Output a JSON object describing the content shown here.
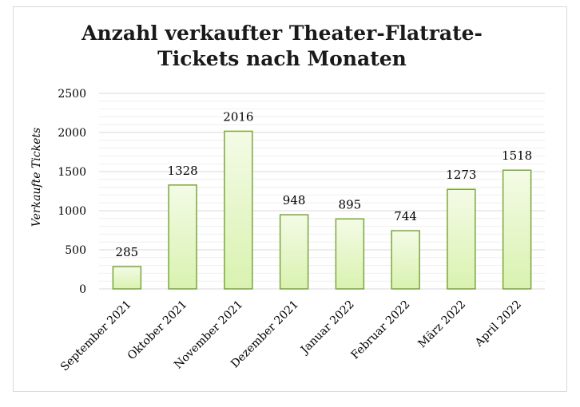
{
  "chart_data": {
    "type": "bar",
    "title_line1": "Anzahl verkaufter Theater-Flatrate-",
    "title_line2": "Tickets nach Monaten",
    "xlabel": "",
    "ylabel": "Verkaufte Tickets",
    "categories": [
      "September 2021",
      "Oktober 2021",
      "November 2021",
      "Dezember 2021",
      "Januar 2022",
      "Februar 2022",
      "März 2022",
      "April 2022"
    ],
    "values": [
      285,
      1328,
      2016,
      948,
      895,
      744,
      1273,
      1518
    ],
    "ylim": [
      0,
      2500
    ],
    "yticks": [
      0,
      500,
      1000,
      1500,
      2000,
      2500
    ],
    "grid": true,
    "bar_fill_top": "#f4fbe6",
    "bar_fill_bottom": "#d9f2b0",
    "bar_stroke": "#7aa63a",
    "gridline_color": "#d9d9d9"
  }
}
